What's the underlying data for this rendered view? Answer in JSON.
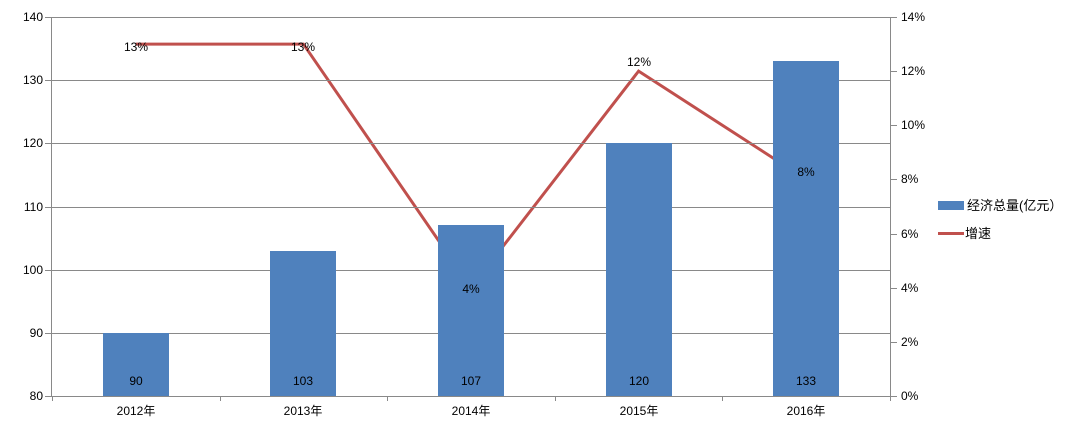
{
  "chart_data": {
    "type": "bar+line",
    "title": "",
    "categories": [
      "2012年",
      "2013年",
      "2014年",
      "2015年",
      "2016年"
    ],
    "series": [
      {
        "name": "经济总量(亿元）",
        "type": "bar",
        "axis": "left",
        "values": [
          90,
          103,
          107,
          120,
          133
        ],
        "labels": [
          "90",
          "103",
          "107",
          "120",
          "133"
        ],
        "color": "#4F81BD"
      },
      {
        "name": "增速",
        "type": "line",
        "axis": "right",
        "values": [
          13,
          13,
          4,
          12,
          8
        ],
        "labels": [
          "13%",
          "13%",
          "4%",
          "12%",
          "8%"
        ],
        "color": "#C0504D"
      }
    ],
    "left_axis": {
      "min": 80,
      "max": 140,
      "step": 10,
      "tick_labels": [
        "140",
        "130",
        "120",
        "110",
        "100",
        "90",
        "80"
      ]
    },
    "right_axis": {
      "min": 0,
      "max": 14,
      "step": 2,
      "tick_labels": [
        "14%",
        "12%",
        "10%",
        "8%",
        "6%",
        "4%",
        "2%",
        "0%"
      ]
    },
    "legend": {
      "position": "right",
      "items": [
        {
          "label": "经济总量(亿元）",
          "swatch": "bar",
          "color": "#4F81BD"
        },
        {
          "label": "增速",
          "swatch": "line",
          "color": "#C0504D"
        }
      ]
    },
    "grid": true,
    "colors": {
      "grid": "#898989",
      "axis": "#898989",
      "text": "#000000",
      "background": "#FFFFFF"
    }
  }
}
